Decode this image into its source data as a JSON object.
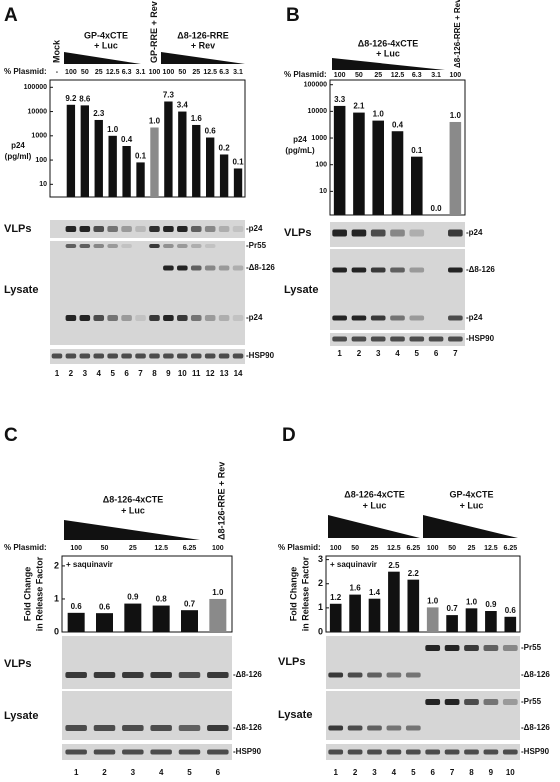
{
  "chart_data": [
    {
      "panel": "A",
      "type": "bar",
      "log_scale": true,
      "headers": [
        "Mock",
        "GP-4xCTE",
        "+ Luc",
        "GP-RRE + Rev",
        "Δ8-126-RRE",
        "+ Rev"
      ],
      "percent_label": "% Plasmid:",
      "percents": [
        "-",
        100,
        50,
        25,
        12.5,
        6.3,
        3.1,
        100,
        100,
        50,
        25,
        12.5,
        6.3,
        3.1
      ],
      "ylabel": [
        "p24",
        "(pg/ml)"
      ],
      "ylim": [
        3,
        200000
      ],
      "yticks": [
        10,
        100,
        1000,
        10000,
        100000
      ],
      "categories": [
        1,
        2,
        3,
        4,
        5,
        6,
        7,
        8,
        9,
        10,
        11,
        12,
        13,
        14
      ],
      "values": [
        null,
        19000,
        18000,
        4500,
        1000,
        380,
        80,
        2200,
        26000,
        10000,
        2800,
        850,
        170,
        45
      ],
      "fold_labels": [
        null,
        "9.2",
        "8.6",
        "2.3",
        "1.0",
        "0.4",
        "0.1",
        "1.0",
        "7.3",
        "3.4",
        "1.6",
        "0.6",
        "0.2",
        "0.1"
      ],
      "colors": [
        "#111111",
        "#111111",
        "#111111",
        "#111111",
        "#111111",
        "#111111",
        "#111111",
        "#8a8a8a",
        "#111111",
        "#111111",
        "#111111",
        "#111111",
        "#111111",
        "#111111"
      ],
      "blot_labels": [
        "VLPs",
        "Lysate"
      ],
      "band_labels": [
        "-p24",
        "-Pr55",
        "-Δ8-126",
        "-p24",
        "-HSP90"
      ]
    },
    {
      "panel": "B",
      "type": "bar",
      "log_scale": true,
      "headers": [
        "Δ8-126-4xCTE",
        "+ Luc",
        "Δ8-126-RRE + Rev"
      ],
      "percent_label": "% Plasmid:",
      "percents": [
        100,
        50,
        25,
        12.5,
        6.3,
        3.1,
        100
      ],
      "ylabel": [
        "p24",
        "(pg/mL)"
      ],
      "ylim": [
        1.3,
        150000
      ],
      "yticks": [
        10,
        100,
        1000,
        10000,
        100000
      ],
      "categories": [
        1,
        2,
        3,
        4,
        5,
        6,
        7
      ],
      "values": [
        16000,
        9000,
        4500,
        1800,
        200,
        null,
        4000
      ],
      "fold_labels": [
        "3.3",
        "2.1",
        "1.0",
        "0.4",
        "0.1",
        "0.0",
        "1.0"
      ],
      "colors": [
        "#111111",
        "#111111",
        "#111111",
        "#111111",
        "#111111",
        "#111111",
        "#8a8a8a"
      ],
      "blot_labels": [
        "VLPs",
        "Lysate"
      ],
      "band_labels": [
        "-p24",
        "-Δ8-126",
        "-p24",
        "-HSP90"
      ]
    },
    {
      "panel": "C",
      "type": "bar",
      "headers": [
        "Δ8-126-4xCTE",
        "+ Luc",
        "Δ8-126-RRE + Rev"
      ],
      "percent_label": "% Plasmid:",
      "percents": [
        100,
        50,
        25,
        12.5,
        6.25,
        100
      ],
      "annotation": "+ saquinavir",
      "ylabel": [
        "Fold Change",
        "in Release Factor"
      ],
      "ylim": [
        0,
        2.3
      ],
      "yticks": [
        0,
        1,
        2
      ],
      "categories": [
        1,
        2,
        3,
        4,
        5,
        6
      ],
      "values": [
        0.58,
        0.57,
        0.86,
        0.8,
        0.66,
        1.0
      ],
      "value_labels": [
        "0.6",
        "0.6",
        "0.9",
        "0.8",
        "0.7",
        "1.0"
      ],
      "colors": [
        "#111111",
        "#111111",
        "#111111",
        "#111111",
        "#111111",
        "#8a8a8a"
      ],
      "blot_labels": [
        "VLPs",
        "Lysate"
      ],
      "band_labels": [
        "-Δ8-126",
        "-Δ8-126",
        "-HSP90"
      ]
    },
    {
      "panel": "D",
      "type": "bar",
      "headers": [
        "Δ8-126-4xCTE",
        "+ Luc",
        "GP-4xCTE",
        "+ Luc"
      ],
      "percent_label": "% Plasmid:",
      "percents": [
        100,
        50,
        25,
        12.5,
        6.25,
        100,
        50,
        25,
        12.5,
        6.25
      ],
      "annotation": "+ saquinavir",
      "ylabel": [
        "Fold Change",
        "in Release Factor"
      ],
      "ylim": [
        0,
        3.15
      ],
      "yticks": [
        0,
        1,
        2,
        3
      ],
      "categories": [
        1,
        2,
        3,
        4,
        5,
        6,
        7,
        8,
        9,
        10
      ],
      "values": [
        1.17,
        1.55,
        1.38,
        2.5,
        2.17,
        1.02,
        0.7,
        0.98,
        0.87,
        0.63
      ],
      "value_labels": [
        "1.2",
        "1.6",
        "1.4",
        "2.5",
        "2.2",
        "1.0",
        "0.7",
        "1.0",
        "0.9",
        "0.6"
      ],
      "colors": [
        "#111111",
        "#111111",
        "#111111",
        "#111111",
        "#111111",
        "#8a8a8a",
        "#111111",
        "#111111",
        "#111111",
        "#111111"
      ],
      "blot_labels": [
        "VLPs",
        "Lysate"
      ],
      "band_labels": [
        "-Pr55",
        "-Δ8-126",
        "-Pr55",
        "-Δ8-126",
        "-HSP90"
      ]
    }
  ]
}
